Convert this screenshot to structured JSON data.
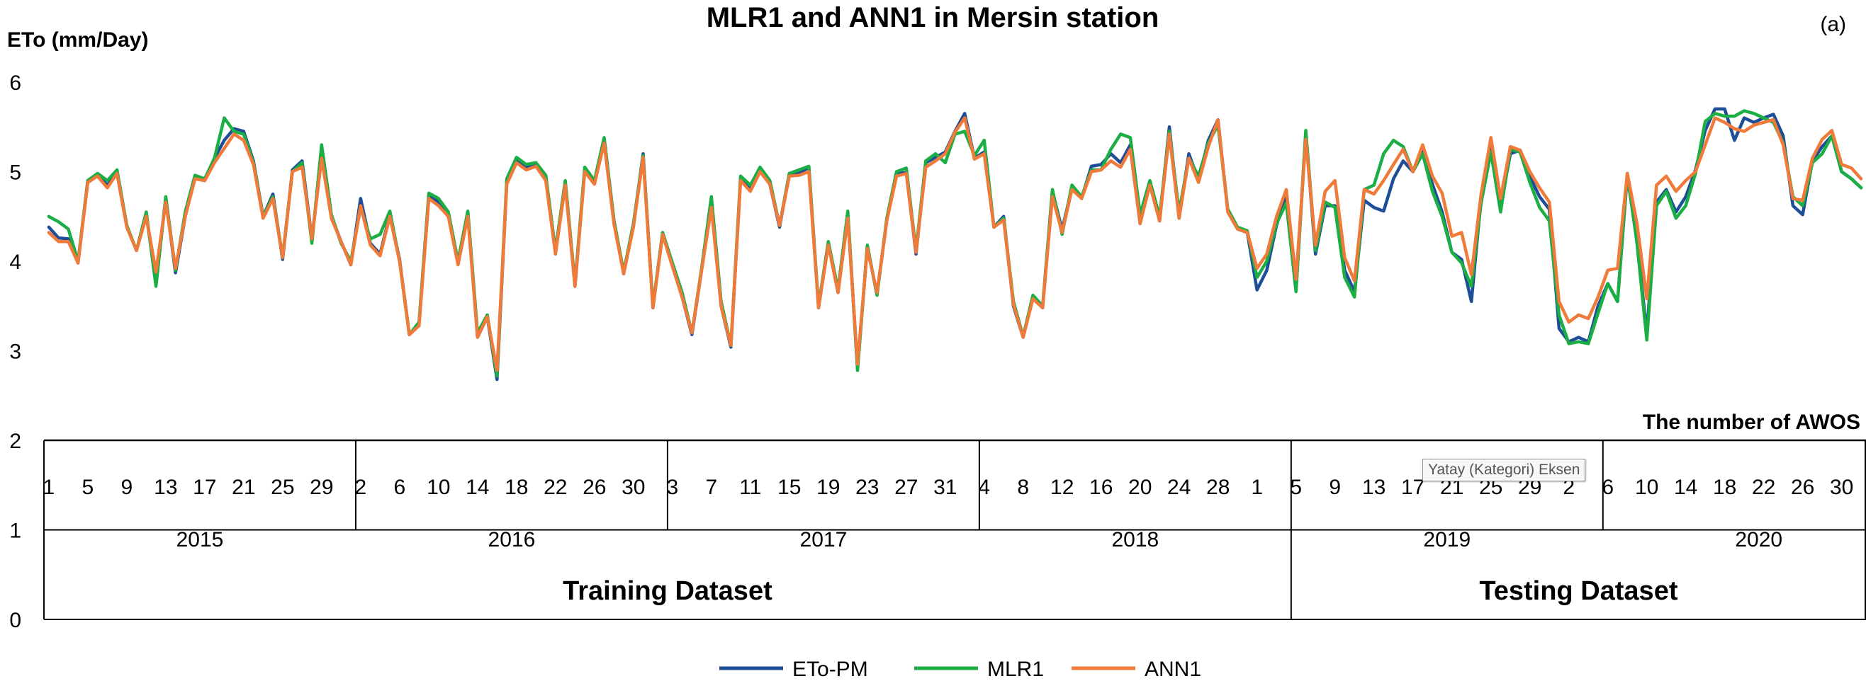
{
  "chart_data": {
    "type": "line",
    "title": "MLR1 and ANN1 in Mersin station",
    "panel_label": "(a)",
    "ylabel": "ETo (mm/Day)",
    "xlabel": "The number of AWOS",
    "ylim": [
      0,
      6
    ],
    "yticks": [
      "0",
      "1",
      "2",
      "3",
      "4",
      "5",
      "6"
    ],
    "months_per_year": 32,
    "month_tick_labels": [
      "1",
      "5",
      "9",
      "13",
      "17",
      "21",
      "25",
      "29",
      "2",
      "6",
      "10",
      "14",
      "18",
      "22",
      "26",
      "30",
      "3",
      "7",
      "11",
      "15",
      "19",
      "23",
      "27",
      "31",
      "4",
      "8",
      "12",
      "16",
      "20",
      "24",
      "28",
      "1",
      "5",
      "9",
      "13",
      "17",
      "21",
      "25",
      "29",
      "2",
      "6",
      "10",
      "14",
      "18",
      "22",
      "26",
      "30"
    ],
    "years": [
      "2015",
      "2016",
      "2017",
      "2018",
      "2019",
      "2020"
    ],
    "datasets": [
      "Training Dataset",
      "Testing Dataset"
    ],
    "tooltip": "Yatay (Kategori) Eksen",
    "series": [
      {
        "name": "ETo-PM",
        "color": "#1f4e99",
        "values": [
          4.38,
          4.26,
          4.25,
          3.98,
          4.9,
          4.96,
          4.85,
          4.98,
          4.39,
          4.12,
          4.52,
          3.77,
          4.7,
          3.87,
          4.5,
          4.95,
          4.9,
          5.15,
          5.35,
          5.48,
          5.45,
          5.12,
          4.5,
          4.75,
          4.02,
          5.02,
          5.12,
          4.25,
          5.18,
          4.5,
          4.22,
          3.96,
          4.7,
          4.2,
          4.08,
          4.52,
          4.02,
          3.18,
          3.3,
          4.74,
          4.66,
          4.52,
          3.98,
          4.55,
          3.15,
          3.38,
          2.68,
          4.88,
          5.14,
          5.05,
          5.08,
          4.92,
          4.1,
          4.88,
          3.72,
          5.02,
          4.88,
          5.35,
          4.45,
          3.86,
          4.4,
          5.2,
          3.48,
          4.32,
          3.95,
          3.6,
          3.18,
          3.9,
          4.65,
          3.5,
          3.04,
          4.92,
          4.8,
          5.02,
          4.86,
          4.38,
          4.98,
          4.98,
          5.05,
          3.48,
          4.2,
          3.65,
          4.52,
          2.8,
          4.16,
          3.63,
          4.46,
          4.98,
          4.99,
          4.08,
          5.1,
          5.16,
          5.22,
          5.45,
          5.65,
          5.15,
          5.22,
          4.38,
          4.5,
          3.5,
          3.15,
          3.6,
          3.48,
          4.78,
          4.35,
          4.82,
          4.7,
          5.06,
          5.08,
          5.2,
          5.1,
          5.3,
          4.42,
          4.88,
          4.45,
          5.5,
          4.48,
          5.2,
          4.9,
          5.35,
          5.58,
          4.55,
          4.36,
          4.32,
          3.68,
          3.9,
          4.4,
          4.75,
          3.68,
          5.42,
          4.08,
          4.62,
          4.62,
          3.9,
          3.66,
          4.68,
          4.6,
          4.56,
          4.92,
          5.12,
          5.0,
          5.25,
          4.86,
          4.55,
          4.1,
          4.02,
          3.55,
          4.7,
          5.32,
          4.62,
          5.2,
          5.24,
          4.95,
          4.72,
          4.58,
          3.25,
          3.1,
          3.15,
          3.1,
          3.5,
          3.75,
          3.55,
          4.96,
          4.22,
          3.2,
          4.66,
          4.8,
          4.55,
          4.72,
          5.02,
          5.46,
          5.7,
          5.7,
          5.35,
          5.6,
          5.55,
          5.6,
          5.64,
          5.4,
          4.62,
          4.52,
          5.12,
          5.28,
          5.4,
          5.0,
          4.92,
          4.82
        ]
      },
      {
        "name": "MLR1",
        "color": "#1aae44",
        "values": [
          4.5,
          4.44,
          4.36,
          4.0,
          4.9,
          4.98,
          4.9,
          5.02,
          4.4,
          4.12,
          4.55,
          3.72,
          4.72,
          3.9,
          4.55,
          4.96,
          4.92,
          5.15,
          5.6,
          5.45,
          5.42,
          5.1,
          4.5,
          4.72,
          4.05,
          5.0,
          5.1,
          4.2,
          5.3,
          4.52,
          4.2,
          4.0,
          4.6,
          4.25,
          4.3,
          4.56,
          4.0,
          3.18,
          3.32,
          4.76,
          4.7,
          4.55,
          4.0,
          4.56,
          3.2,
          3.4,
          2.72,
          4.92,
          5.16,
          5.08,
          5.1,
          4.96,
          4.12,
          4.9,
          3.75,
          5.05,
          4.9,
          5.38,
          4.46,
          3.88,
          4.42,
          5.18,
          3.5,
          4.32,
          3.98,
          3.65,
          3.2,
          3.92,
          4.72,
          3.55,
          3.06,
          4.95,
          4.85,
          5.05,
          4.9,
          4.4,
          4.98,
          5.02,
          5.06,
          3.5,
          4.22,
          3.68,
          4.56,
          2.78,
          4.18,
          3.62,
          4.48,
          5.0,
          5.04,
          4.12,
          5.12,
          5.2,
          5.1,
          5.42,
          5.45,
          5.18,
          5.35,
          4.38,
          4.48,
          3.55,
          3.16,
          3.62,
          3.5,
          4.8,
          4.3,
          4.85,
          4.72,
          5.02,
          5.02,
          5.25,
          5.42,
          5.38,
          4.52,
          4.9,
          4.5,
          5.45,
          4.55,
          5.15,
          4.95,
          5.32,
          5.52,
          4.58,
          4.38,
          4.34,
          3.82,
          4.0,
          4.42,
          4.65,
          3.66,
          5.46,
          4.12,
          4.66,
          4.6,
          3.82,
          3.6,
          4.8,
          4.85,
          5.2,
          5.35,
          5.28,
          5.0,
          5.2,
          4.78,
          4.5,
          4.1,
          3.98,
          3.72,
          4.65,
          5.22,
          4.55,
          5.25,
          5.22,
          4.88,
          4.6,
          4.45,
          3.4,
          3.08,
          3.1,
          3.08,
          3.42,
          3.75,
          3.55,
          4.98,
          4.2,
          3.12,
          4.62,
          4.78,
          4.48,
          4.62,
          4.98,
          5.56,
          5.65,
          5.62,
          5.62,
          5.68,
          5.65,
          5.6,
          5.55,
          5.32,
          4.72,
          4.62,
          5.1,
          5.2,
          5.4,
          5.0,
          4.92,
          4.82
        ]
      },
      {
        "name": "ANN1",
        "color": "#f07a3a",
        "values": [
          4.32,
          4.22,
          4.22,
          3.98,
          4.88,
          4.95,
          4.82,
          4.98,
          4.38,
          4.12,
          4.5,
          3.88,
          4.66,
          3.92,
          4.5,
          4.92,
          4.9,
          5.1,
          5.26,
          5.42,
          5.35,
          5.08,
          4.48,
          4.7,
          4.04,
          5.0,
          5.05,
          4.25,
          5.15,
          4.48,
          4.22,
          3.96,
          4.62,
          4.18,
          4.06,
          4.5,
          4.0,
          3.18,
          3.28,
          4.7,
          4.62,
          4.5,
          3.96,
          4.5,
          3.15,
          3.38,
          2.78,
          4.86,
          5.1,
          5.02,
          5.06,
          4.9,
          4.08,
          4.85,
          3.72,
          5.0,
          4.86,
          5.32,
          4.42,
          3.86,
          4.38,
          5.16,
          3.48,
          4.3,
          3.94,
          3.6,
          3.2,
          3.9,
          4.6,
          3.5,
          3.06,
          4.9,
          4.78,
          5.0,
          4.86,
          4.4,
          4.95,
          4.96,
          5.0,
          3.48,
          4.18,
          3.65,
          4.48,
          2.85,
          4.14,
          3.65,
          4.45,
          4.95,
          4.98,
          4.1,
          5.05,
          5.12,
          5.2,
          5.44,
          5.6,
          5.14,
          5.2,
          4.38,
          4.46,
          3.52,
          3.15,
          3.58,
          3.48,
          4.72,
          4.32,
          4.8,
          4.7,
          5.0,
          5.02,
          5.12,
          5.05,
          5.25,
          4.42,
          4.85,
          4.45,
          5.42,
          4.48,
          5.15,
          4.88,
          5.28,
          5.58,
          4.55,
          4.36,
          4.32,
          3.92,
          4.08,
          4.5,
          4.8,
          3.8,
          5.36,
          4.18,
          4.78,
          4.9,
          4.04,
          3.78,
          4.8,
          4.75,
          4.9,
          5.08,
          5.25,
          5.0,
          5.3,
          4.95,
          4.76,
          4.28,
          4.32,
          3.85,
          4.75,
          5.38,
          4.7,
          5.28,
          5.24,
          5.0,
          4.82,
          4.66,
          3.55,
          3.32,
          3.4,
          3.36,
          3.6,
          3.9,
          3.92,
          4.98,
          4.42,
          3.58,
          4.85,
          4.95,
          4.78,
          4.9,
          5.0,
          5.3,
          5.6,
          5.55,
          5.48,
          5.45,
          5.52,
          5.55,
          5.58,
          5.3,
          4.7,
          4.68,
          5.15,
          5.36,
          5.46,
          5.08,
          5.04,
          4.92
        ]
      }
    ]
  }
}
